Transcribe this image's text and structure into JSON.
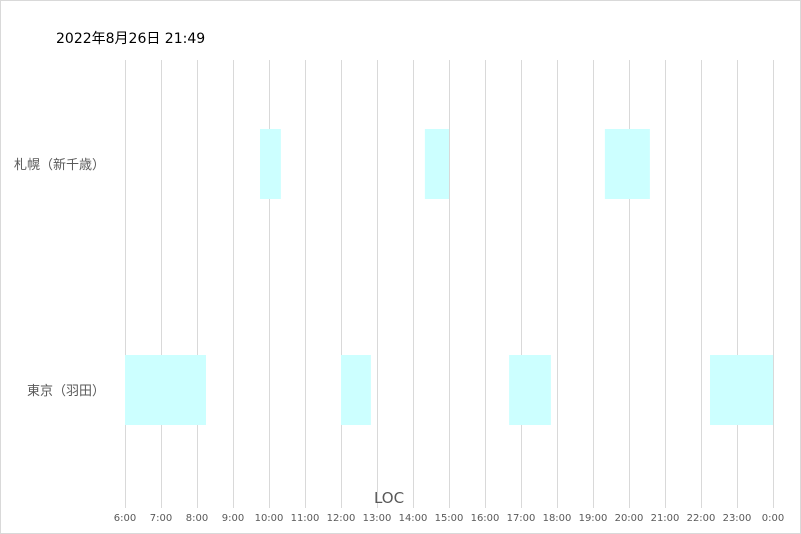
{
  "header": {
    "title": "2022年8月26日 21:49"
  },
  "chart_data": {
    "type": "bar",
    "title": "2022年8月26日 21:49",
    "xlabel": "LOC",
    "ylabel": "",
    "xlim": [
      6,
      24
    ],
    "x_ticks": [
      "6:00",
      "7:00",
      "8:00",
      "9:00",
      "10:00",
      "11:00",
      "12:00",
      "13:00",
      "14:00",
      "15:00",
      "16:00",
      "17:00",
      "18:00",
      "19:00",
      "20:00",
      "21:00",
      "22:00",
      "23:00",
      "0:00"
    ],
    "categories": [
      "札幌（新千歳）",
      "東京（羽田）"
    ],
    "bar_color": "#ccffff",
    "grid": true,
    "series": [
      {
        "values": [
          [
            9.75,
            10.33
          ],
          [
            14.33,
            15.0
          ],
          [
            19.33,
            20.58
          ]
        ]
      },
      {
        "values": [
          [
            6.0,
            8.25
          ],
          [
            12.0,
            12.83
          ],
          [
            16.67,
            17.83
          ],
          [
            22.25,
            24.0
          ]
        ]
      }
    ]
  }
}
